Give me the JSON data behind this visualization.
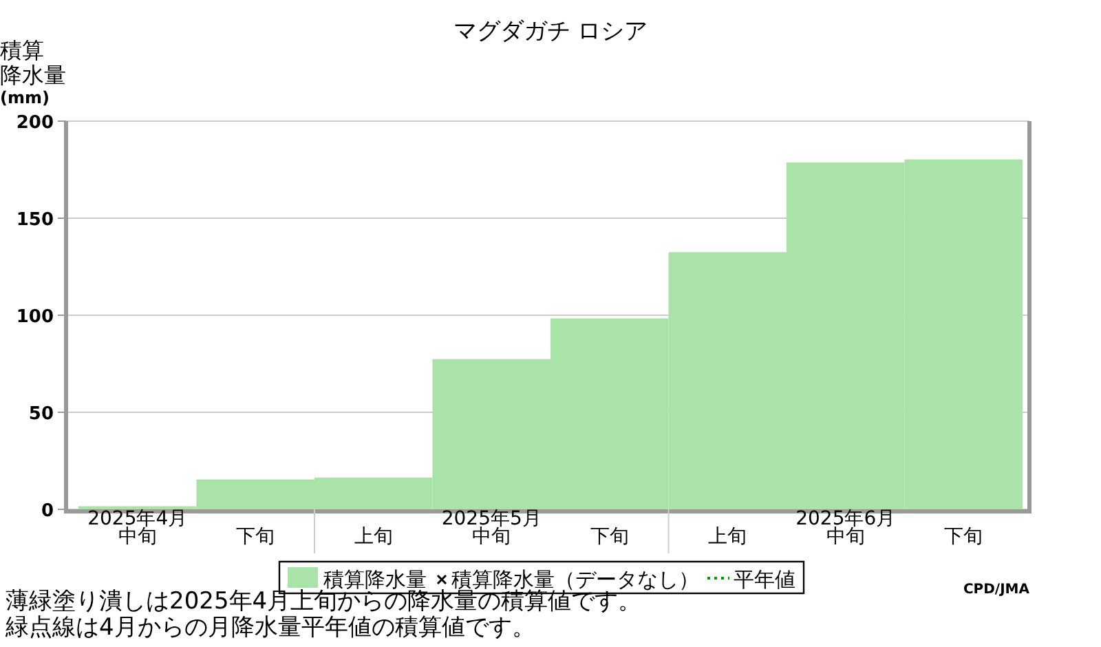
{
  "chart_data": {
    "type": "bar",
    "title": "マグダガチ ロシア",
    "ylabel": "積算降水量(mm)",
    "categories": [
      "2025年4月中旬",
      "下旬",
      "上旬",
      "2025年5月中旬",
      "下旬",
      "上旬",
      "2025年6月中旬",
      "下旬"
    ],
    "series": [
      {
        "name": "積算降水量",
        "color": "#aae3a8",
        "values": [
          1.6,
          15.4,
          16.4,
          77.4,
          98.4,
          132.5,
          178.7,
          180.3
        ]
      },
      {
        "name": "積算降水量（データなし）",
        "type": "scatter",
        "marker": "cross",
        "color": "#000000",
        "values": [
          null,
          null,
          null,
          null,
          null,
          null,
          null,
          null
        ]
      },
      {
        "name": "平年値",
        "type": "line",
        "line_style": "dotted",
        "color": "#009900",
        "values": [
          null,
          null,
          null,
          null,
          null,
          null,
          null,
          null
        ]
      }
    ],
    "ylim": [
      0,
      200
    ],
    "yticks": [
      0,
      50,
      100,
      150,
      200
    ],
    "grid": "y",
    "legend": "bottom",
    "annotations": [
      "CPD/JMA",
      "薄緑塗り潰しは2025年4月上旬からの降水量の積算値です。",
      "緑点線は4月からの月降水量平年値の積算値です。"
    ]
  }
}
